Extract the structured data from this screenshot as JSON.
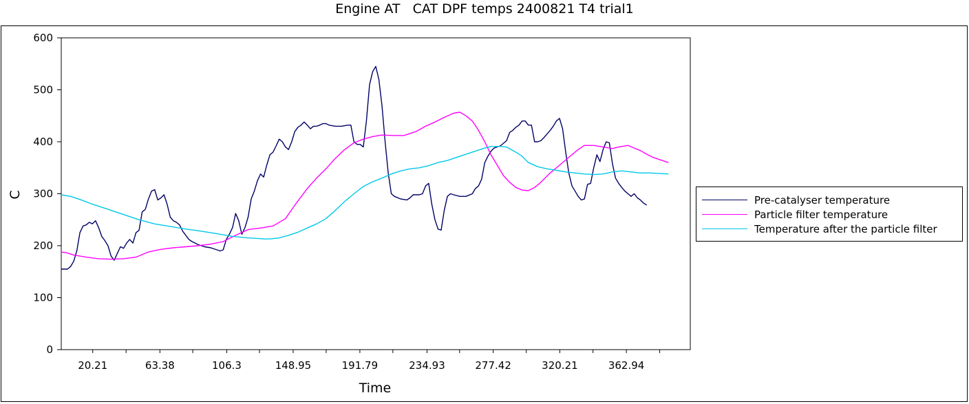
{
  "chart_data": {
    "type": "line",
    "title": "Engine AT   CAT DPF temps 2400821 T4 trial1",
    "xlabel": "Time",
    "ylabel": "C",
    "xlim": [
      0,
      404
    ],
    "ylim": [
      0,
      600
    ],
    "xticks": [
      20.21,
      63.38,
      106.3,
      148.95,
      191.79,
      234.93,
      277.42,
      320.21,
      362.94
    ],
    "yticks": [
      0,
      100,
      200,
      300,
      400,
      500,
      600
    ],
    "legend_position": "right",
    "grid": false,
    "series": [
      {
        "name": "Pre-catalyser temperature",
        "color": "#000066",
        "points": [
          [
            0,
            155
          ],
          [
            4,
            155
          ],
          [
            6,
            160
          ],
          [
            8,
            170
          ],
          [
            10,
            190
          ],
          [
            12,
            225
          ],
          [
            14,
            238
          ],
          [
            16,
            240
          ],
          [
            18,
            245
          ],
          [
            20,
            242
          ],
          [
            22,
            248
          ],
          [
            24,
            235
          ],
          [
            26,
            218
          ],
          [
            28,
            210
          ],
          [
            30,
            200
          ],
          [
            32,
            180
          ],
          [
            34,
            172
          ],
          [
            36,
            185
          ],
          [
            38,
            198
          ],
          [
            40,
            195
          ],
          [
            42,
            205
          ],
          [
            44,
            212
          ],
          [
            46,
            205
          ],
          [
            48,
            225
          ],
          [
            50,
            230
          ],
          [
            52,
            265
          ],
          [
            54,
            270
          ],
          [
            56,
            290
          ],
          [
            58,
            305
          ],
          [
            60,
            308
          ],
          [
            62,
            288
          ],
          [
            64,
            292
          ],
          [
            66,
            298
          ],
          [
            68,
            280
          ],
          [
            70,
            255
          ],
          [
            72,
            248
          ],
          [
            74,
            245
          ],
          [
            76,
            240
          ],
          [
            78,
            228
          ],
          [
            80,
            220
          ],
          [
            82,
            212
          ],
          [
            84,
            208
          ],
          [
            88,
            202
          ],
          [
            92,
            198
          ],
          [
            96,
            196
          ],
          [
            100,
            192
          ],
          [
            102,
            190
          ],
          [
            104,
            192
          ],
          [
            106,
            212
          ],
          [
            108,
            222
          ],
          [
            110,
            235
          ],
          [
            112,
            262
          ],
          [
            114,
            248
          ],
          [
            116,
            222
          ],
          [
            118,
            235
          ],
          [
            120,
            255
          ],
          [
            122,
            290
          ],
          [
            124,
            305
          ],
          [
            126,
            325
          ],
          [
            128,
            338
          ],
          [
            130,
            332
          ],
          [
            132,
            355
          ],
          [
            134,
            375
          ],
          [
            136,
            380
          ],
          [
            138,
            392
          ],
          [
            140,
            405
          ],
          [
            142,
            400
          ],
          [
            144,
            390
          ],
          [
            146,
            385
          ],
          [
            148,
            400
          ],
          [
            150,
            420
          ],
          [
            152,
            428
          ],
          [
            154,
            432
          ],
          [
            156,
            438
          ],
          [
            158,
            432
          ],
          [
            160,
            425
          ],
          [
            162,
            430
          ],
          [
            164,
            430
          ],
          [
            166,
            432
          ],
          [
            168,
            435
          ],
          [
            170,
            435
          ],
          [
            172,
            432
          ],
          [
            176,
            430
          ],
          [
            180,
            430
          ],
          [
            184,
            432
          ],
          [
            186,
            432
          ],
          [
            188,
            400
          ],
          [
            190,
            395
          ],
          [
            192,
            395
          ],
          [
            194,
            390
          ],
          [
            196,
            440
          ],
          [
            198,
            510
          ],
          [
            200,
            535
          ],
          [
            202,
            545
          ],
          [
            204,
            520
          ],
          [
            206,
            470
          ],
          [
            208,
            400
          ],
          [
            210,
            340
          ],
          [
            212,
            300
          ],
          [
            214,
            295
          ],
          [
            218,
            290
          ],
          [
            222,
            288
          ],
          [
            224,
            292
          ],
          [
            226,
            298
          ],
          [
            230,
            298
          ],
          [
            232,
            300
          ],
          [
            234,
            315
          ],
          [
            236,
            320
          ],
          [
            238,
            280
          ],
          [
            240,
            250
          ],
          [
            242,
            232
          ],
          [
            244,
            230
          ],
          [
            246,
            268
          ],
          [
            248,
            295
          ],
          [
            250,
            300
          ],
          [
            252,
            298
          ],
          [
            256,
            295
          ],
          [
            260,
            295
          ],
          [
            264,
            300
          ],
          [
            266,
            310
          ],
          [
            268,
            315
          ],
          [
            270,
            328
          ],
          [
            272,
            360
          ],
          [
            274,
            372
          ],
          [
            276,
            382
          ],
          [
            278,
            388
          ],
          [
            282,
            392
          ],
          [
            286,
            402
          ],
          [
            288,
            418
          ],
          [
            290,
            422
          ],
          [
            292,
            428
          ],
          [
            294,
            432
          ],
          [
            296,
            440
          ],
          [
            298,
            440
          ],
          [
            300,
            432
          ],
          [
            302,
            432
          ],
          [
            304,
            400
          ],
          [
            306,
            400
          ],
          [
            308,
            402
          ],
          [
            310,
            408
          ],
          [
            312,
            415
          ],
          [
            314,
            422
          ],
          [
            316,
            430
          ],
          [
            318,
            440
          ],
          [
            320,
            445
          ],
          [
            322,
            425
          ],
          [
            324,
            380
          ],
          [
            326,
            340
          ],
          [
            328,
            315
          ],
          [
            330,
            305
          ],
          [
            332,
            295
          ],
          [
            334,
            288
          ],
          [
            336,
            290
          ],
          [
            338,
            318
          ],
          [
            340,
            320
          ],
          [
            342,
            350
          ],
          [
            344,
            375
          ],
          [
            346,
            362
          ],
          [
            348,
            385
          ],
          [
            350,
            400
          ],
          [
            352,
            398
          ],
          [
            354,
            358
          ],
          [
            356,
            330
          ],
          [
            358,
            320
          ],
          [
            360,
            312
          ],
          [
            362,
            305
          ],
          [
            364,
            300
          ],
          [
            366,
            295
          ],
          [
            368,
            300
          ],
          [
            370,
            292
          ],
          [
            372,
            288
          ],
          [
            374,
            282
          ],
          [
            376,
            278
          ]
        ]
      },
      {
        "name": "Particle filter temperature",
        "color": "#ff00ff",
        "points": [
          [
            0,
            188
          ],
          [
            4,
            186
          ],
          [
            8,
            182
          ],
          [
            16,
            178
          ],
          [
            24,
            175
          ],
          [
            32,
            174
          ],
          [
            40,
            175
          ],
          [
            48,
            178
          ],
          [
            56,
            188
          ],
          [
            64,
            193
          ],
          [
            72,
            196
          ],
          [
            80,
            198
          ],
          [
            88,
            200
          ],
          [
            96,
            203
          ],
          [
            104,
            208
          ],
          [
            112,
            220
          ],
          [
            120,
            231
          ],
          [
            128,
            234
          ],
          [
            136,
            238
          ],
          [
            144,
            252
          ],
          [
            150,
            278
          ],
          [
            158,
            310
          ],
          [
            164,
            330
          ],
          [
            170,
            348
          ],
          [
            176,
            368
          ],
          [
            182,
            385
          ],
          [
            188,
            398
          ],
          [
            194,
            405
          ],
          [
            200,
            410
          ],
          [
            206,
            413
          ],
          [
            214,
            412
          ],
          [
            220,
            412
          ],
          [
            228,
            420
          ],
          [
            234,
            430
          ],
          [
            240,
            438
          ],
          [
            246,
            447
          ],
          [
            252,
            455
          ],
          [
            256,
            457
          ],
          [
            260,
            450
          ],
          [
            264,
            440
          ],
          [
            268,
            422
          ],
          [
            272,
            400
          ],
          [
            276,
            375
          ],
          [
            280,
            355
          ],
          [
            284,
            335
          ],
          [
            288,
            322
          ],
          [
            292,
            312
          ],
          [
            296,
            307
          ],
          [
            300,
            306
          ],
          [
            304,
            312
          ],
          [
            308,
            322
          ],
          [
            314,
            340
          ],
          [
            320,
            355
          ],
          [
            326,
            370
          ],
          [
            332,
            385
          ],
          [
            336,
            393
          ],
          [
            342,
            393
          ],
          [
            348,
            390
          ],
          [
            354,
            387
          ],
          [
            358,
            390
          ],
          [
            364,
            393
          ],
          [
            368,
            388
          ],
          [
            372,
            383
          ],
          [
            376,
            376
          ],
          [
            380,
            370
          ],
          [
            384,
            366
          ],
          [
            388,
            362
          ],
          [
            390,
            360
          ]
        ]
      },
      {
        "name": "Temperature after the particle filter",
        "color": "#00c8e8",
        "points": [
          [
            0,
            298
          ],
          [
            6,
            295
          ],
          [
            12,
            289
          ],
          [
            20,
            280
          ],
          [
            30,
            270
          ],
          [
            40,
            260
          ],
          [
            50,
            250
          ],
          [
            60,
            242
          ],
          [
            70,
            237
          ],
          [
            80,
            232
          ],
          [
            90,
            228
          ],
          [
            100,
            223
          ],
          [
            110,
            218
          ],
          [
            120,
            215
          ],
          [
            126,
            214
          ],
          [
            130,
            213
          ],
          [
            134,
            213
          ],
          [
            140,
            215
          ],
          [
            146,
            220
          ],
          [
            152,
            226
          ],
          [
            158,
            234
          ],
          [
            164,
            242
          ],
          [
            170,
            252
          ],
          [
            176,
            268
          ],
          [
            182,
            285
          ],
          [
            188,
            300
          ],
          [
            194,
            314
          ],
          [
            200,
            323
          ],
          [
            206,
            330
          ],
          [
            212,
            338
          ],
          [
            218,
            344
          ],
          [
            224,
            348
          ],
          [
            230,
            350
          ],
          [
            236,
            354
          ],
          [
            242,
            360
          ],
          [
            248,
            364
          ],
          [
            254,
            370
          ],
          [
            260,
            376
          ],
          [
            266,
            382
          ],
          [
            272,
            388
          ],
          [
            276,
            391
          ],
          [
            282,
            391
          ],
          [
            286,
            390
          ],
          [
            292,
            380
          ],
          [
            296,
            372
          ],
          [
            300,
            360
          ],
          [
            306,
            352
          ],
          [
            312,
            348
          ],
          [
            318,
            345
          ],
          [
            324,
            342
          ],
          [
            330,
            340
          ],
          [
            336,
            338
          ],
          [
            342,
            337
          ],
          [
            348,
            338
          ],
          [
            354,
            342
          ],
          [
            360,
            344
          ],
          [
            366,
            342
          ],
          [
            372,
            340
          ],
          [
            378,
            340
          ],
          [
            390,
            338
          ]
        ]
      }
    ]
  }
}
